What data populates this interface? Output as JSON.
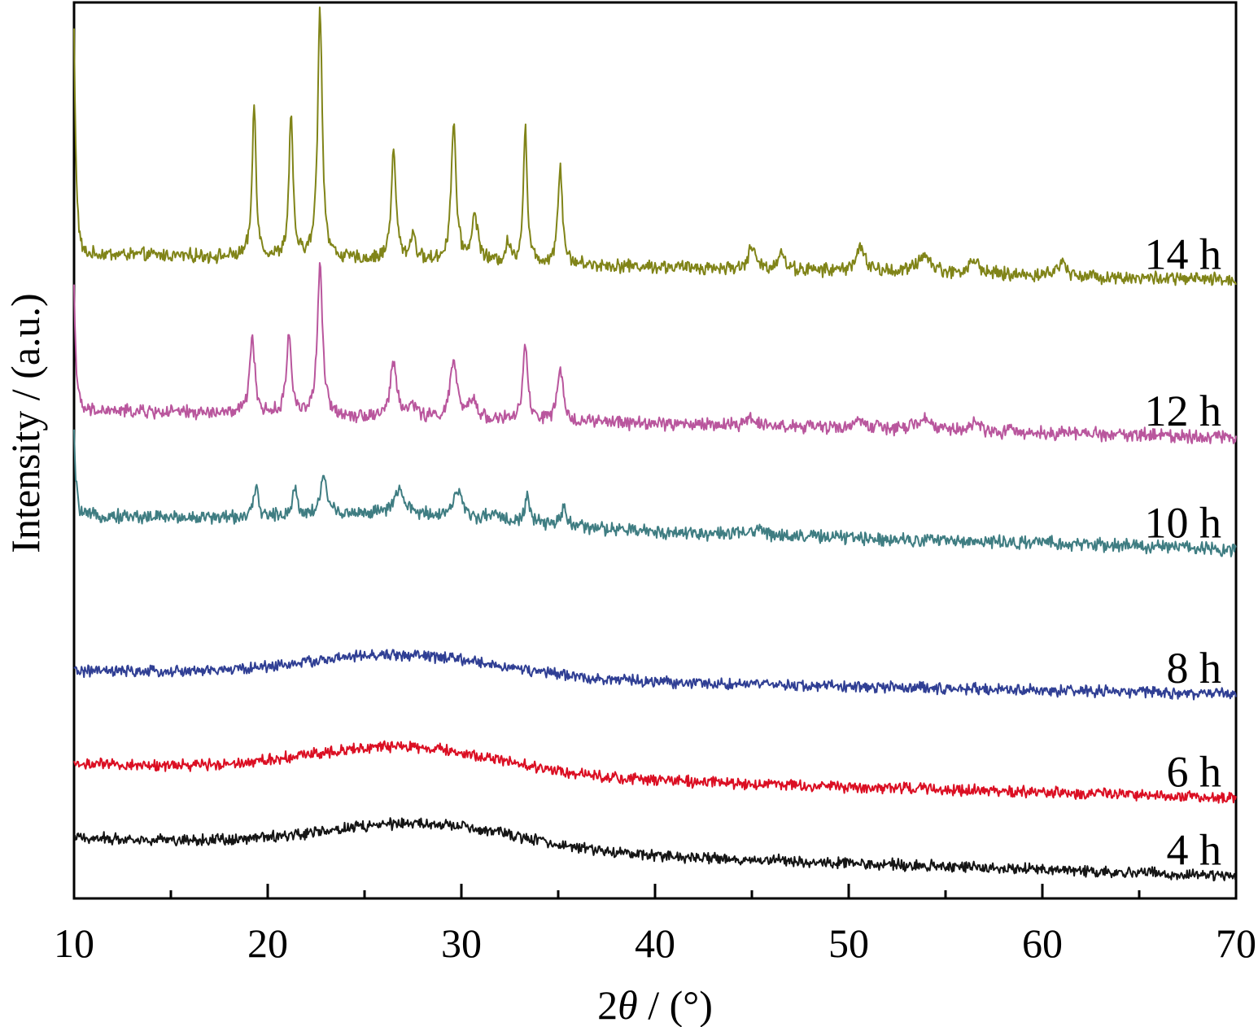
{
  "chart_data": {
    "type": "line",
    "title": "",
    "xlabel_prefix": "2",
    "xlabel_symbol": "θ",
    "xlabel_suffix": " / (°)",
    "ylabel": "Intensity / (a.u.)",
    "xlim": [
      10,
      70
    ],
    "ylim": [
      0,
      1000
    ],
    "grid": false,
    "y_ticks_shown": false,
    "x_ticks": [
      10,
      20,
      30,
      40,
      50,
      60,
      70
    ],
    "x_tick_labels": [
      "10",
      "20",
      "30",
      "40",
      "50",
      "60",
      "70"
    ],
    "x_minor_ticks": [
      15,
      25,
      35,
      45,
      55,
      65
    ],
    "series": [
      {
        "name": "14 h",
        "color": "#808418",
        "baseline": 720,
        "end": 690,
        "peaks": [
          [
            19.3,
            170,
            0.12
          ],
          [
            21.2,
            160,
            0.12
          ],
          [
            22.7,
            280,
            0.14
          ],
          [
            26.5,
            120,
            0.15
          ],
          [
            27.5,
            30,
            0.15
          ],
          [
            29.6,
            155,
            0.15
          ],
          [
            30.7,
            50,
            0.2
          ],
          [
            32.4,
            20,
            0.15
          ],
          [
            33.3,
            150,
            0.12
          ],
          [
            35.1,
            110,
            0.14
          ],
          [
            45.0,
            25,
            0.2
          ],
          [
            46.5,
            20,
            0.2
          ],
          [
            50.6,
            25,
            0.3
          ],
          [
            53.9,
            20,
            0.4
          ],
          [
            56.5,
            15,
            0.3
          ],
          [
            61.0,
            15,
            0.3
          ]
        ],
        "hump": [
          0,
          27,
          6
        ],
        "start_spike": 250,
        "noise": 6
      },
      {
        "name": "12 h",
        "color": "#b9569d",
        "baseline": 545,
        "end": 515,
        "peaks": [
          [
            19.2,
            90,
            0.15
          ],
          [
            21.1,
            90,
            0.15
          ],
          [
            22.7,
            165,
            0.16
          ],
          [
            26.5,
            60,
            0.2
          ],
          [
            27.5,
            15,
            0.2
          ],
          [
            29.6,
            65,
            0.2
          ],
          [
            30.6,
            20,
            0.25
          ],
          [
            33.3,
            85,
            0.14
          ],
          [
            35.1,
            55,
            0.18
          ],
          [
            45.0,
            10,
            0.3
          ],
          [
            50.6,
            10,
            0.3
          ],
          [
            53.9,
            12,
            0.4
          ],
          [
            56.5,
            8,
            0.3
          ]
        ],
        "hump": [
          0,
          27,
          6
        ],
        "start_spike": 140,
        "noise": 6
      },
      {
        "name": "10 h",
        "color": "#3f7d82",
        "baseline": 428,
        "end": 390,
        "peaks": [
          [
            19.4,
            30,
            0.15
          ],
          [
            21.4,
            30,
            0.15
          ],
          [
            22.9,
            45,
            0.18
          ],
          [
            26.8,
            25,
            0.3
          ],
          [
            29.8,
            30,
            0.25
          ],
          [
            31.7,
            10,
            0.25
          ],
          [
            33.4,
            30,
            0.15
          ],
          [
            35.3,
            20,
            0.2
          ],
          [
            45.4,
            8,
            0.3
          ]
        ],
        "hump": [
          12,
          27,
          5
        ],
        "start_spike": 90,
        "noise": 6
      },
      {
        "name": "8 h",
        "color": "#303f94",
        "baseline": 254,
        "end": 228,
        "peaks": [],
        "hump": [
          25,
          27,
          5
        ],
        "start_spike": 0,
        "noise": 5
      },
      {
        "name": "6 h",
        "color": "#db0f23",
        "baseline": 150,
        "end": 112,
        "peaks": [],
        "hump": [
          30,
          27,
          5
        ],
        "start_spike": 0,
        "noise": 5
      },
      {
        "name": "4 h",
        "color": "#151515",
        "baseline": 68,
        "end": 25,
        "peaks": [],
        "hump": [
          28,
          28,
          5
        ],
        "start_spike": 0,
        "noise": 5
      }
    ]
  }
}
